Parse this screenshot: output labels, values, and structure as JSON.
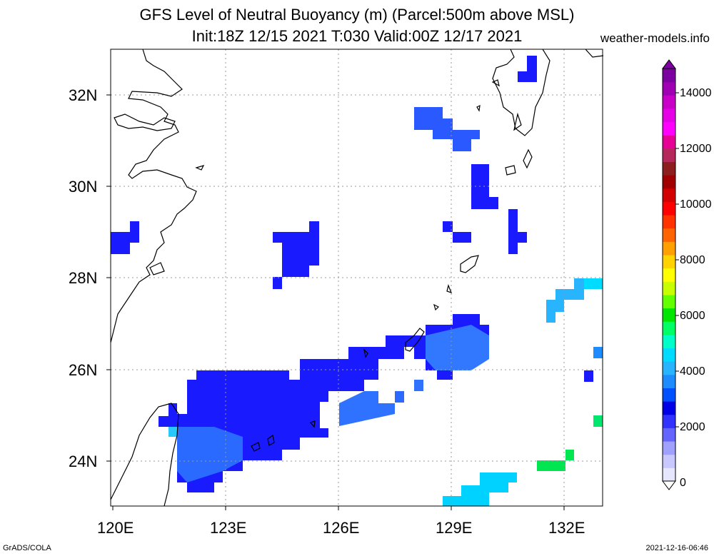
{
  "title": {
    "line1": "GFS Level of Neutral Buoyancy (m) (Parcel:500m above MSL)",
    "line2": "Init:18Z 12/15 2021 T:030 Valid:00Z 12/17 2021",
    "source": "weather-models.info"
  },
  "footer": {
    "left": "GrADS/COLA",
    "right": "2021-12-16-06:46"
  },
  "map": {
    "latitude_labels": [
      "32N",
      "30N",
      "28N",
      "26N",
      "24N"
    ],
    "longitude_labels": [
      "120E",
      "123E",
      "126E",
      "129E",
      "132E"
    ],
    "grid": true
  },
  "colorbar": {
    "labels": [
      "14000",
      "12000",
      "10000",
      "8000",
      "6000",
      "4000",
      "2000",
      "0"
    ],
    "colors": [
      "#e6e6ff",
      "#c8c8ff",
      "#a0a0ff",
      "#6464ff",
      "#3232ff",
      "#0000e6",
      "#0050ff",
      "#1e8cff",
      "#28b4ff",
      "#00dcff",
      "#00ffc8",
      "#00ff64",
      "#00e600",
      "#64ff00",
      "#c8ff00",
      "#ffff00",
      "#ffd200",
      "#ffa000",
      "#ff6400",
      "#ff3200",
      "#ff0000",
      "#d20000",
      "#a00000",
      "#8c1e1e",
      "#b4285a",
      "#e60096",
      "#ff00ff",
      "#e600e6",
      "#c800c8",
      "#a000b4",
      "#7d00a0"
    ]
  }
}
